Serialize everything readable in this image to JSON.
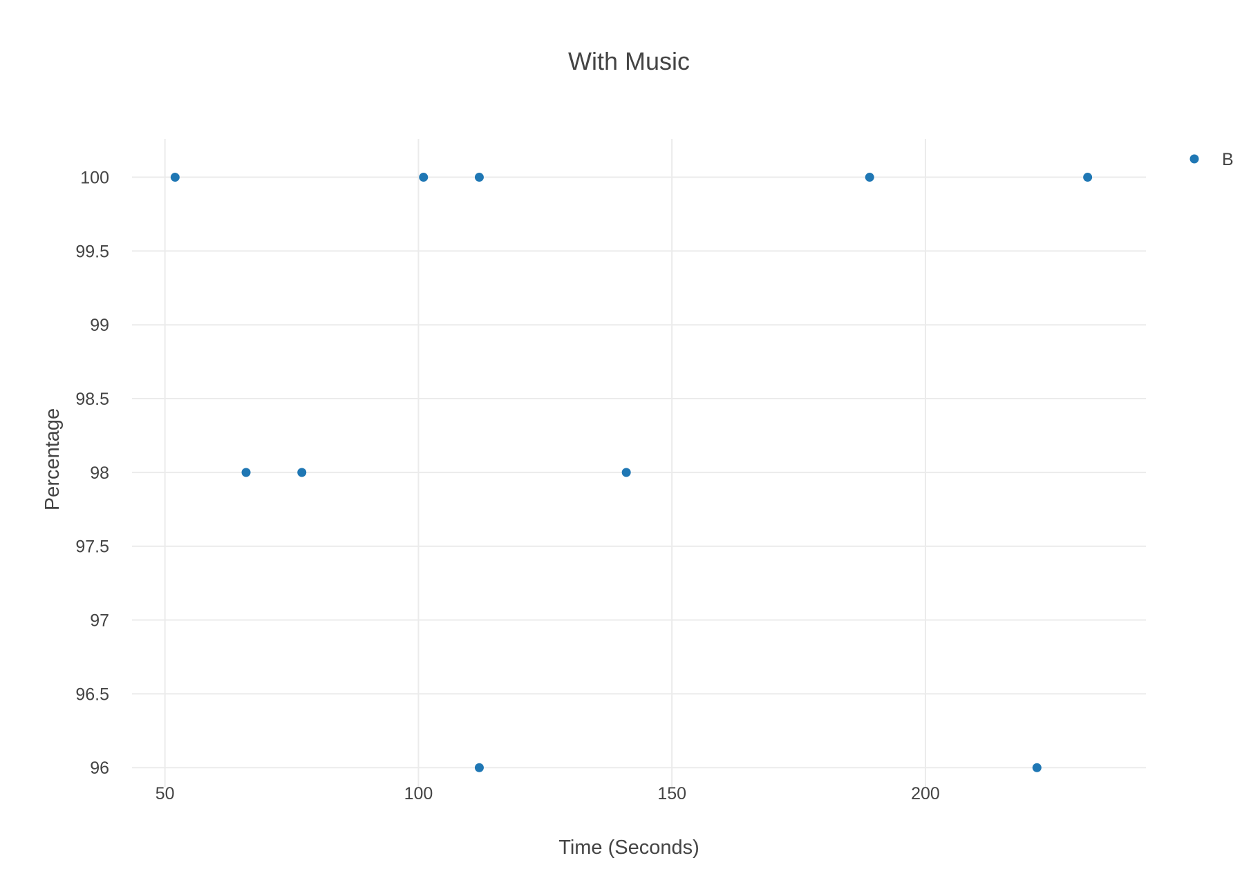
{
  "colors": {
    "marker": "#1f77b4",
    "grid": "#ebebeb",
    "text": "#444444",
    "background": "#ffffff"
  },
  "chart_data": {
    "type": "scatter",
    "title": "With Music",
    "xlabel": "Time (Seconds)",
    "ylabel": "Percentage",
    "xlim": [
      43.5,
      243.5
    ],
    "ylim": [
      95.87,
      100.26
    ],
    "xticks": [
      50,
      100,
      150,
      200
    ],
    "yticks": [
      96,
      96.5,
      97,
      97.5,
      98,
      98.5,
      99,
      99.5,
      100
    ],
    "xtick_labels": [
      "50",
      "100",
      "150",
      "200"
    ],
    "ytick_labels": [
      "96",
      "96.5",
      "97",
      "97.5",
      "98",
      "98.5",
      "99",
      "99.5",
      "100"
    ],
    "grid": true,
    "legend_position": "top-right",
    "series": [
      {
        "name": "B",
        "color": "#1f77b4",
        "points": [
          {
            "x": 52,
            "y": 100
          },
          {
            "x": 66,
            "y": 98
          },
          {
            "x": 77,
            "y": 98
          },
          {
            "x": 101,
            "y": 100
          },
          {
            "x": 112,
            "y": 100
          },
          {
            "x": 112,
            "y": 96
          },
          {
            "x": 141,
            "y": 98
          },
          {
            "x": 189,
            "y": 100
          },
          {
            "x": 222,
            "y": 96
          },
          {
            "x": 232,
            "y": 100
          }
        ]
      }
    ]
  }
}
